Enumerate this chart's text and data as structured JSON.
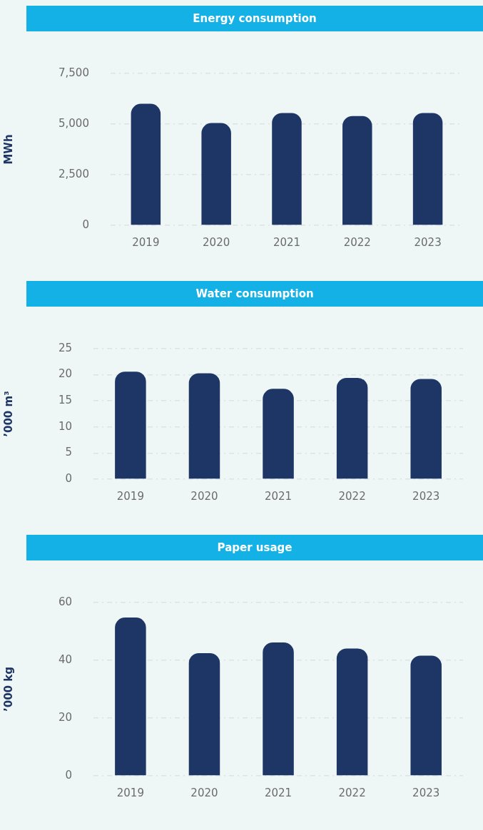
{
  "chart_data": [
    {
      "type": "bar",
      "title": "Energy consumption",
      "ylabel": "MWh",
      "categories": [
        "2019",
        "2020",
        "2021",
        "2022",
        "2023"
      ],
      "values": [
        6000,
        5050,
        5550,
        5400,
        5550
      ],
      "color": "#1e3666",
      "ylim": [
        0,
        7500
      ],
      "yticks": [
        0,
        {
          "value": 2500,
          "label": "2,500"
        },
        {
          "value": 5000,
          "label": "5,000"
        },
        {
          "value": 7500,
          "label": "7,500"
        }
      ],
      "grid": "y"
    },
    {
      "type": "bar",
      "title": "Water consumption",
      "ylabel": "’000 m³",
      "categories": [
        "2019",
        "2020",
        "2021",
        "2022",
        "2023"
      ],
      "values": [
        20.6,
        20.3,
        17.3,
        19.4,
        19.2
      ],
      "color": "#1e3666",
      "ylim": [
        0,
        25
      ],
      "yticks": [
        0,
        5,
        10,
        15,
        20,
        25
      ],
      "grid": "y"
    },
    {
      "type": "bar",
      "title": "Paper usage",
      "ylabel": "’000 kg",
      "categories": [
        "2019",
        "2020",
        "2021",
        "2022",
        "2023"
      ],
      "values": [
        54.8,
        42.5,
        46.2,
        44.1,
        41.6
      ],
      "color": "#1e3666",
      "ylim": [
        0,
        60
      ],
      "yticks": [
        0,
        20,
        40,
        60
      ],
      "grid": "y"
    }
  ]
}
